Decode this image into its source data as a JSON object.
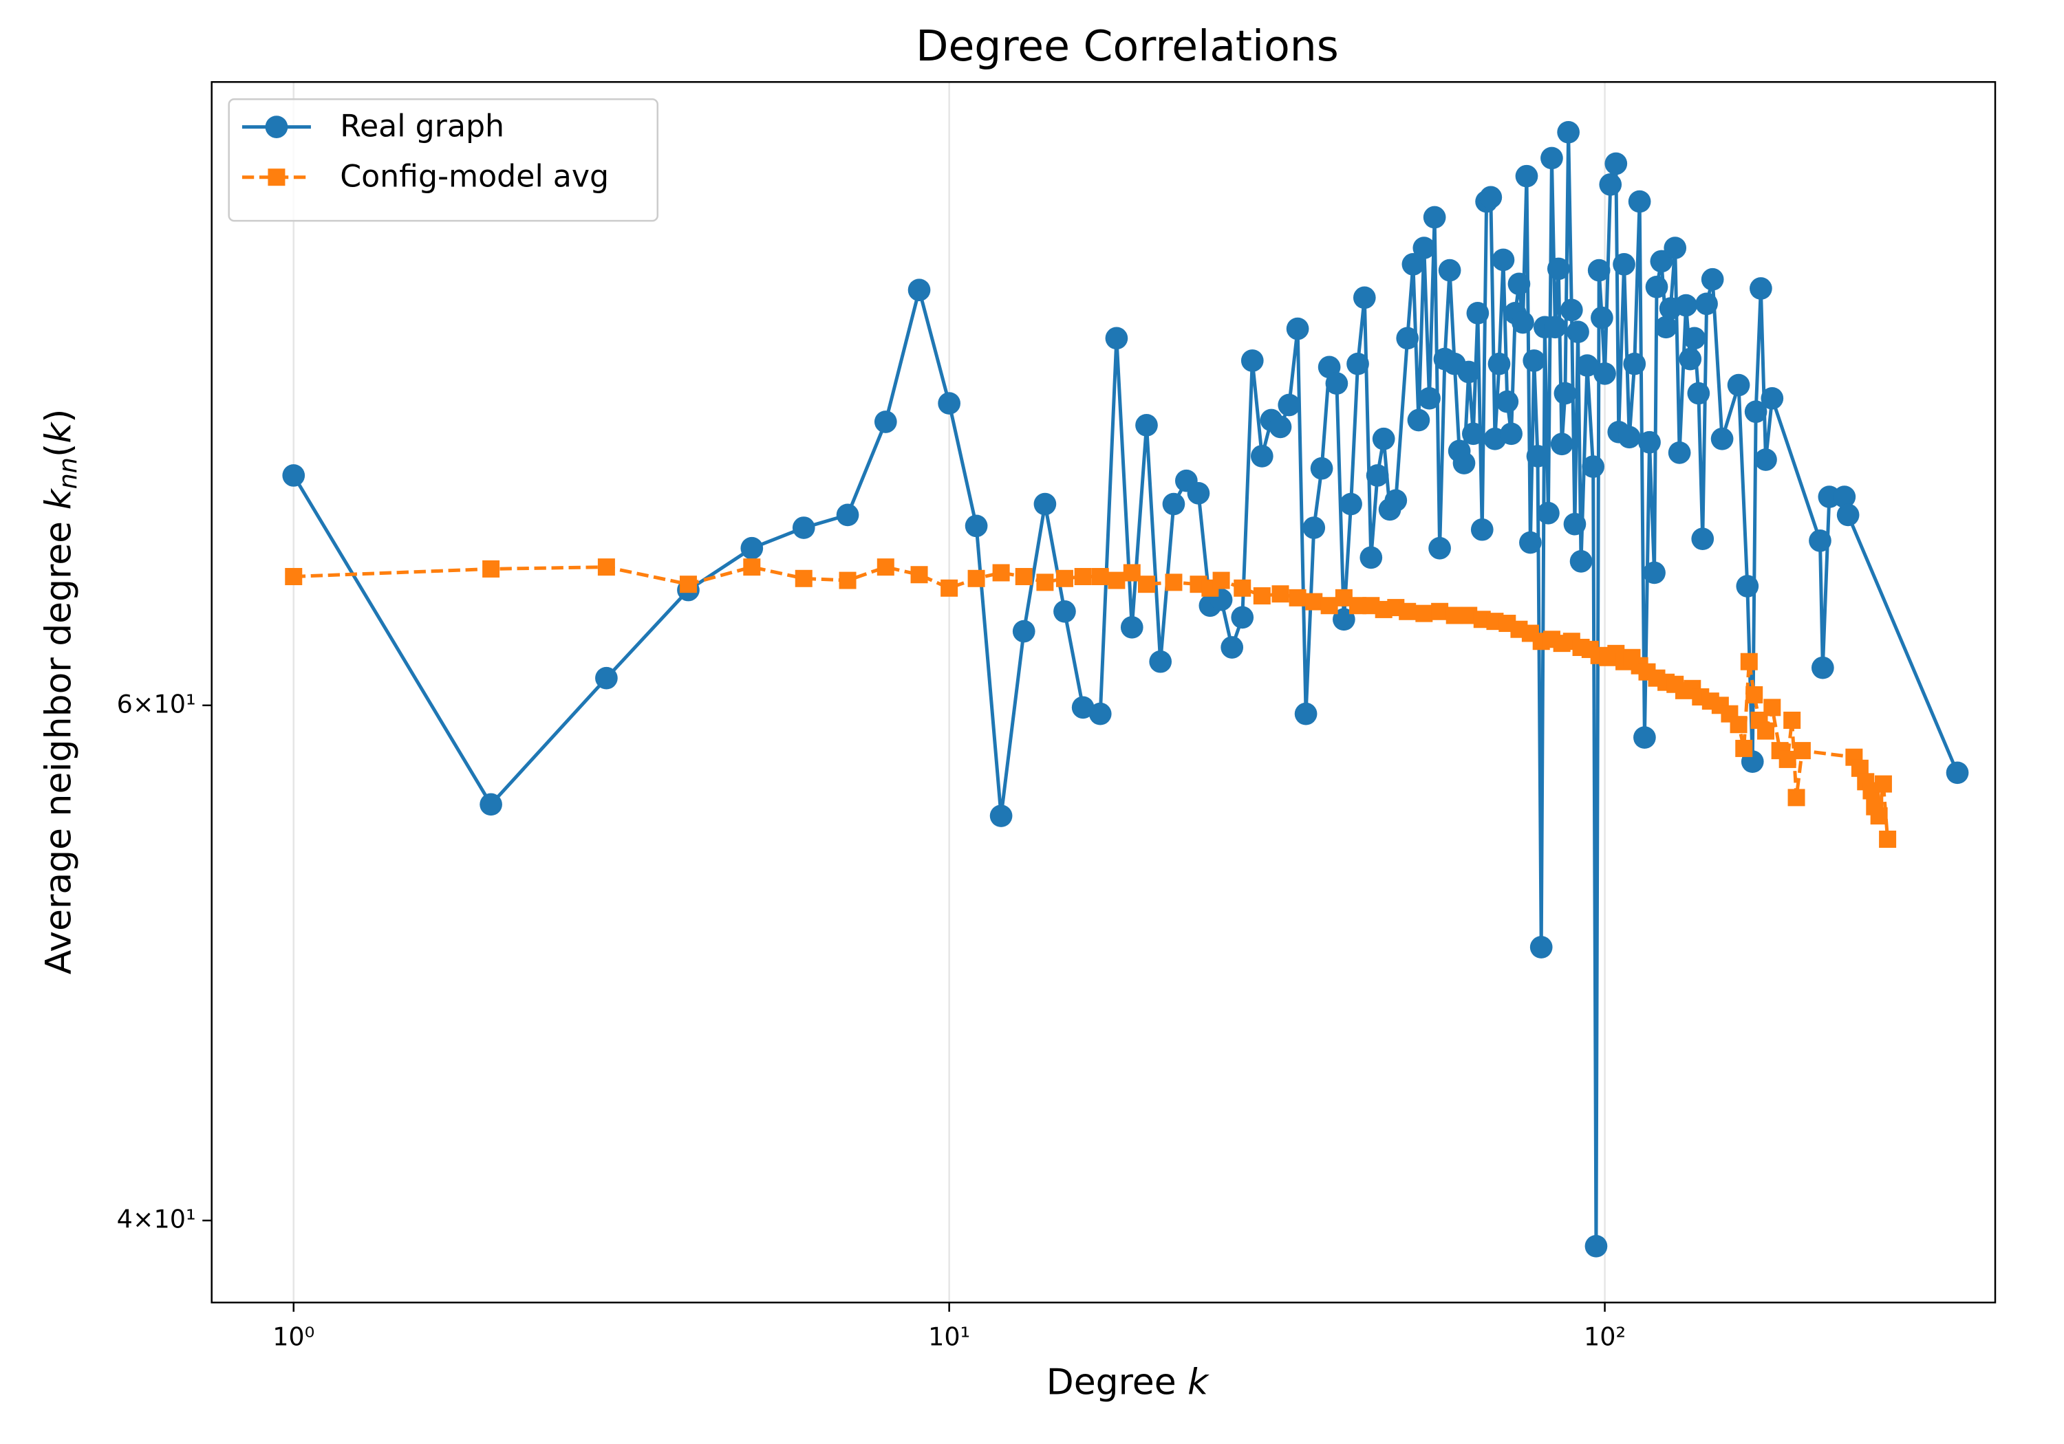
{
  "chart_data": {
    "type": "line",
    "title": "Degree Correlations",
    "xlabel": "Degree k",
    "ylabel": "Average neighbor degree k_nn(k)",
    "xscale": "log",
    "yscale": "log",
    "xlim": [
      0.75,
      394
    ],
    "ylim": [
      37.5,
      98
    ],
    "xticks": [
      {
        "value": 1,
        "label": "10⁰"
      },
      {
        "value": 10,
        "label": "10¹"
      },
      {
        "value": 100,
        "label": "10²"
      }
    ],
    "yticks": [
      {
        "value": 40,
        "label": "4×10¹"
      },
      {
        "value": 60,
        "label": "6×10¹"
      }
    ],
    "grid": "x",
    "legend": "upper left",
    "series": [
      {
        "name": "Real graph",
        "color": "#1f77b4",
        "marker": "circle",
        "linestyle": "solid",
        "x": [
          1,
          2,
          3,
          4,
          5,
          6,
          7,
          8,
          9,
          10,
          11,
          12,
          13,
          14,
          15,
          16,
          17,
          18,
          19,
          20,
          21,
          22,
          23,
          24,
          25,
          26,
          27,
          28,
          29,
          30,
          31,
          32,
          33,
          34,
          35,
          36,
          37,
          38,
          39,
          40,
          41,
          42,
          43,
          44,
          45,
          46,
          47,
          48,
          50,
          51,
          52,
          53,
          54,
          55,
          56,
          57,
          58,
          59,
          60,
          61,
          62,
          63,
          64,
          65,
          66,
          67,
          68,
          69,
          70,
          71,
          72,
          73,
          74,
          75,
          76,
          77,
          78,
          79,
          80,
          81,
          82,
          83,
          84,
          85,
          86,
          87,
          88,
          89,
          90,
          91,
          92,
          94,
          96,
          97,
          98,
          99,
          100,
          102,
          104,
          105,
          107,
          109,
          111,
          113,
          115,
          117,
          119,
          120,
          122,
          124,
          126,
          128,
          130,
          133,
          135,
          137,
          139,
          141,
          143,
          146,
          151,
          160,
          165,
          168,
          170,
          173,
          176,
          180,
          213,
          215,
          220,
          232,
          235,
          345
        ],
        "values": [
          71.9,
          55.5,
          61.3,
          65.7,
          67.9,
          69.0,
          69.7,
          75.0,
          83.2,
          76.1,
          69.1,
          55.0,
          63.6,
          70.3,
          64.6,
          59.9,
          59.6,
          80.1,
          63.8,
          74.8,
          62.1,
          70.3,
          71.6,
          70.9,
          64.9,
          65.2,
          62.8,
          64.3,
          78.7,
          73.0,
          75.1,
          74.7,
          76.0,
          80.7,
          59.6,
          69.0,
          72.3,
          78.3,
          77.3,
          64.2,
          70.3,
          78.5,
          82.7,
          67.4,
          71.9,
          74.0,
          70.0,
          70.5,
          80.1,
          84.9,
          75.1,
          86.0,
          76.4,
          88.1,
          67.9,
          78.8,
          84.5,
          78.5,
          73.3,
          72.6,
          78.0,
          74.3,
          81.7,
          68.9,
          89.2,
          89.5,
          74.0,
          78.5,
          85.2,
          76.2,
          74.3,
          81.7,
          83.6,
          81.1,
          91.0,
          68.2,
          78.7,
          73.0,
          49.6,
          80.8,
          69.8,
          92.3,
          80.8,
          84.6,
          73.7,
          76.7,
          94.2,
          81.9,
          69.2,
          80.5,
          67.2,
          78.4,
          72.4,
          39.2,
          84.5,
          81.4,
          77.9,
          90.4,
          91.9,
          74.4,
          84.9,
          74.1,
          78.5,
          89.2,
          58.5,
          73.8,
          66.6,
          83.4,
          85.1,
          80.8,
          82.0,
          86.0,
          73.2,
          82.2,
          78.8,
          80.1,
          76.7,
          68.4,
          82.3,
          83.9,
          74.0,
          77.2,
          65.9,
          57.4,
          75.6,
          83.3,
          72.8,
          76.4,
          68.3,
          61.8,
          70.7,
          70.7,
          69.7,
          56.9
        ]
      },
      {
        "name": "Config-model avg",
        "color": "#ff7f0e",
        "marker": "square",
        "linestyle": "dashed",
        "x": [
          1,
          2,
          3,
          4,
          5,
          6,
          7,
          8,
          9,
          10,
          11,
          12,
          13,
          14,
          15,
          16,
          17,
          18,
          19,
          20,
          22,
          24,
          25,
          26,
          28,
          30,
          32,
          34,
          36,
          38,
          40,
          42,
          44,
          46,
          48,
          50,
          53,
          56,
          59,
          62,
          65,
          68,
          71,
          74,
          77,
          80,
          83,
          86,
          89,
          92,
          95,
          98,
          101,
          104,
          107,
          110,
          113,
          116,
          120,
          124,
          128,
          132,
          136,
          140,
          145,
          150,
          155,
          160,
          163,
          166,
          169,
          172,
          176,
          180,
          185,
          190,
          193,
          196,
          200,
          240,
          245,
          250,
          255,
          258,
          262,
          266,
          270
        ],
        "values": [
          66.4,
          66.8,
          66.9,
          66.0,
          66.9,
          66.3,
          66.2,
          66.9,
          66.5,
          65.8,
          66.3,
          66.6,
          66.4,
          66.1,
          66.3,
          66.4,
          66.4,
          66.2,
          66.6,
          66.0,
          66.1,
          66.0,
          65.8,
          66.2,
          65.8,
          65.4,
          65.5,
          65.3,
          65.1,
          64.9,
          65.3,
          64.9,
          64.9,
          64.7,
          64.8,
          64.6,
          64.5,
          64.6,
          64.4,
          64.4,
          64.2,
          64.1,
          64.0,
          63.7,
          63.5,
          63.1,
          63.2,
          63.0,
          63.1,
          62.8,
          62.7,
          62.4,
          62.3,
          62.5,
          62.1,
          62.3,
          61.9,
          61.6,
          61.3,
          61.1,
          61.0,
          60.7,
          60.8,
          60.4,
          60.2,
          60.0,
          59.6,
          59.1,
          58.0,
          62.1,
          60.5,
          59.3,
          58.8,
          59.9,
          57.9,
          57.5,
          59.3,
          55.8,
          57.9,
          57.6,
          57.1,
          56.5,
          56.1,
          55.4,
          55.0,
          56.4,
          54.0
        ]
      }
    ]
  }
}
